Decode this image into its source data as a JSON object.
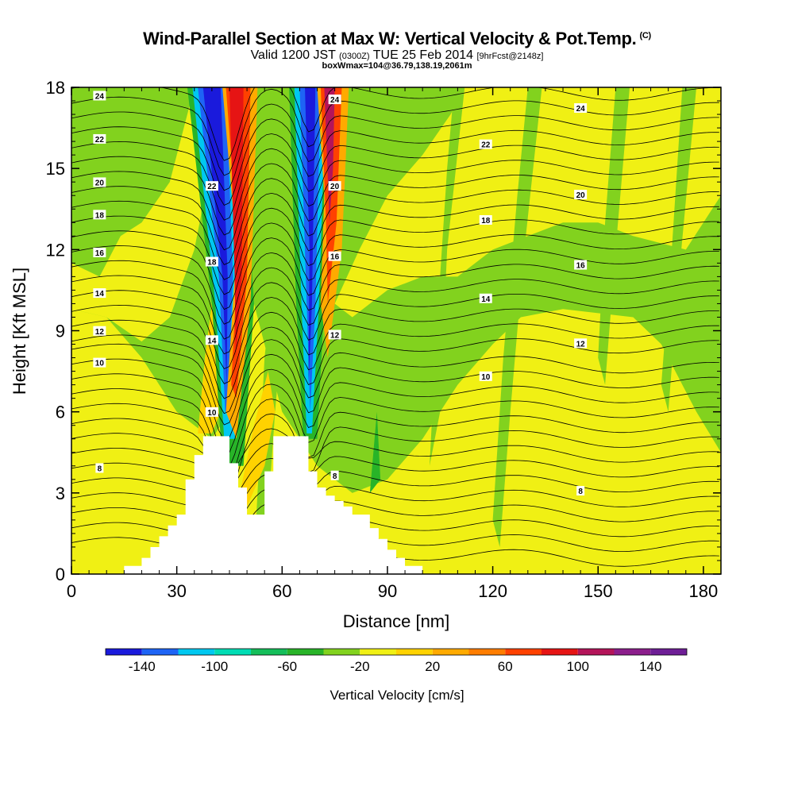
{
  "header": {
    "title": "Wind-Parallel Section at Max W: Vertical Velocity & Pot.Temp.",
    "title_mark": "(C)",
    "valid": "Valid 1200 JST",
    "valid_utc": "(0300Z)",
    "date": "TUE 25 Feb 2014",
    "forecast": "[9hrFcst@2148z]",
    "box_info": "boxWmax=104@36.79,138.19,2061m"
  },
  "chart_data": {
    "type": "heatmap",
    "xlabel": "Distance [nm]",
    "ylabel": "Height [Kft MSL]",
    "xlim": [
      0,
      185
    ],
    "ylim": [
      0,
      18
    ],
    "x_ticks": [
      "0",
      "30",
      "60",
      "90",
      "120",
      "150",
      "180"
    ],
    "y_ticks": [
      "0",
      "3",
      "6",
      "9",
      "12",
      "15",
      "18"
    ],
    "x_tick_values": [
      0,
      30,
      60,
      90,
      120,
      150,
      180
    ],
    "y_tick_values": [
      0,
      3,
      6,
      9,
      12,
      15,
      18
    ],
    "colorbar": {
      "label": "Vertical Velocity [cm/s]",
      "bounds": [
        -160,
        -140,
        -120,
        -100,
        -80,
        -60,
        -40,
        -20,
        0,
        20,
        40,
        60,
        80,
        100,
        120,
        140,
        160
      ],
      "tick_labels": [
        "-140",
        "-100",
        "-60",
        "-20",
        "20",
        "60",
        "100",
        "140"
      ],
      "tick_values": [
        -140,
        -100,
        -60,
        -20,
        20,
        60,
        100,
        140
      ],
      "colors": [
        "#1a1adc",
        "#1e64f5",
        "#00c8f0",
        "#00dcb4",
        "#14be5a",
        "#28b428",
        "#82d21e",
        "#f0f014",
        "#ffd200",
        "#ffaa00",
        "#ff7d00",
        "#ff4100",
        "#e61414",
        "#b4145a",
        "#8c1e8c",
        "#6e1e96"
      ]
    },
    "terrain_nm_kft": [
      [
        0,
        0
      ],
      [
        15,
        0
      ],
      [
        15,
        0.3
      ],
      [
        20,
        0.3
      ],
      [
        20,
        0.6
      ],
      [
        22.5,
        0.6
      ],
      [
        22.5,
        1.0
      ],
      [
        25,
        1.0
      ],
      [
        25,
        1.4
      ],
      [
        27.5,
        1.4
      ],
      [
        27.5,
        1.8
      ],
      [
        30,
        1.8
      ],
      [
        30,
        2.2
      ],
      [
        32.5,
        2.2
      ],
      [
        32.5,
        3.5
      ],
      [
        35,
        3.5
      ],
      [
        35,
        4.4
      ],
      [
        37.5,
        4.4
      ],
      [
        37.5,
        5.1
      ],
      [
        45,
        5.1
      ],
      [
        45,
        4.1
      ],
      [
        47.5,
        4.1
      ],
      [
        47.5,
        3.2
      ],
      [
        50,
        3.2
      ],
      [
        50,
        2.2
      ],
      [
        55,
        2.2
      ],
      [
        55,
        3.8
      ],
      [
        57.5,
        3.8
      ],
      [
        57.5,
        5.1
      ],
      [
        67.5,
        5.1
      ],
      [
        67.5,
        3.8
      ],
      [
        70,
        3.8
      ],
      [
        70,
        3.2
      ],
      [
        72.5,
        3.2
      ],
      [
        72.5,
        2.9
      ],
      [
        75,
        2.9
      ],
      [
        75,
        2.7
      ],
      [
        77.5,
        2.7
      ],
      [
        77.5,
        2.5
      ],
      [
        80,
        2.5
      ],
      [
        80,
        2.2
      ],
      [
        85,
        2.2
      ],
      [
        85,
        1.7
      ],
      [
        87.5,
        1.7
      ],
      [
        87.5,
        1.3
      ],
      [
        90,
        1.3
      ],
      [
        90,
        0.9
      ],
      [
        92.5,
        0.9
      ],
      [
        92.5,
        0.6
      ],
      [
        95,
        0.6
      ],
      [
        95,
        0.3
      ],
      [
        100,
        0.3
      ],
      [
        100,
        0
      ],
      [
        185,
        0
      ]
    ],
    "theta_contours": [
      {
        "label": "8",
        "base_kft": 3.4
      },
      {
        "label": "10",
        "base_kft": 7.3
      },
      {
        "label": "12",
        "base_kft": 8.7
      },
      {
        "label": "14",
        "base_kft": 10.1
      },
      {
        "label": "16",
        "base_kft": 11.6
      },
      {
        "label": "18",
        "base_kft": 13.0
      },
      {
        "label": "20",
        "base_kft": 14.2
      },
      {
        "label": "22",
        "base_kft": 15.8
      },
      {
        "label": "24",
        "base_kft": 17.4
      }
    ]
  }
}
